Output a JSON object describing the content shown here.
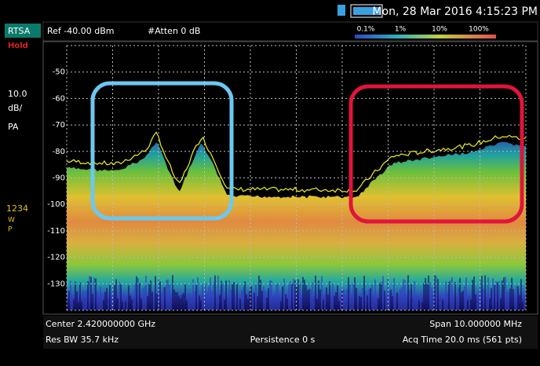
{
  "status_bar": {
    "datetime": "Mon, 28 Mar 2016 4:15:23 PM"
  },
  "side_panel": {
    "mode": "RTSA",
    "hold": "Hold",
    "scale_value": "10.0",
    "scale_unit": "dB/",
    "detector": "PA",
    "traces": "1234",
    "trace_mode_1": "W",
    "trace_mode_2": "P"
  },
  "header": {
    "ref_level": "Ref -40.00 dBm",
    "attenuation": "#Atten 0 dB",
    "persistence_scale": [
      "0.1%",
      "1%",
      "10%",
      "100%"
    ]
  },
  "plot": {
    "y_labels": [
      "-50",
      "-60",
      "-70",
      "-80",
      "-90",
      "-100",
      "-110",
      "-120",
      "-130"
    ]
  },
  "footer": {
    "center": "Center 2.420000000 GHz",
    "span": "Span 10.000000 MHz",
    "res_bw": "Res BW 35.7 kHz",
    "persistence": "Persistence 0  s",
    "acq_time": "Acq Time 20.0 ms (561 pts)"
  }
}
